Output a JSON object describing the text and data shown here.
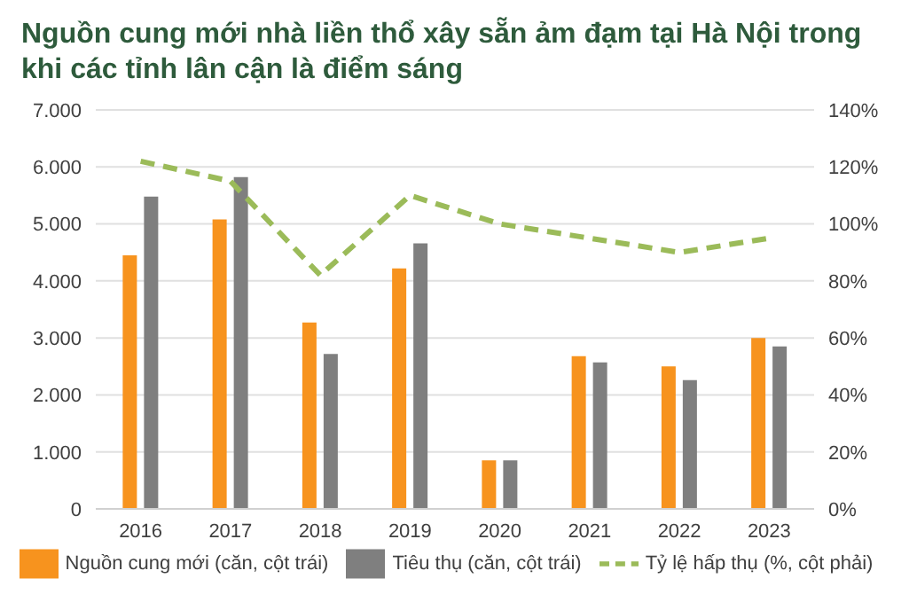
{
  "chart_data": {
    "type": "bar",
    "title": "Nguồn cung mới nhà liền thổ xây sẵn ảm đạm tại Hà Nội trong khi các tỉnh lân cận là điểm sáng",
    "categories": [
      "2016",
      "2017",
      "2018",
      "2019",
      "2020",
      "2021",
      "2022",
      "2023"
    ],
    "series": [
      {
        "name": "Nguồn cung mới (căn, cột trái)",
        "color": "#f7931e",
        "values": [
          4450,
          5080,
          3270,
          4220,
          850,
          2680,
          2500,
          3000
        ]
      },
      {
        "name": "Tiêu thụ (căn, cột trái)",
        "color": "#7f7f7f",
        "values": [
          5480,
          5820,
          2720,
          4660,
          850,
          2570,
          2260,
          2850
        ]
      },
      {
        "name": "Tỷ lệ hấp thụ (%, cột phải)",
        "type": "line",
        "axis": "y2",
        "color": "#9bbb59",
        "line_style": "dashed",
        "marker": "none",
        "values": [
          122,
          115,
          82,
          110,
          100,
          95,
          90,
          95
        ]
      }
    ],
    "ylim": [
      0,
      7000
    ],
    "yticks": [
      {
        "value": 0,
        "label": "0"
      },
      {
        "value": 1000,
        "label": "1.000"
      },
      {
        "value": 2000,
        "label": "2.000"
      },
      {
        "value": 3000,
        "label": "3.000"
      },
      {
        "value": 4000,
        "label": "4.000"
      },
      {
        "value": 5000,
        "label": "5.000"
      },
      {
        "value": 6000,
        "label": "6.000"
      },
      {
        "value": 7000,
        "label": "7.000"
      }
    ],
    "y2lim": [
      0,
      140
    ],
    "y2ticks": [
      {
        "value": 0,
        "label": "0%"
      },
      {
        "value": 20,
        "label": "20%"
      },
      {
        "value": 40,
        "label": "40%"
      },
      {
        "value": 60,
        "label": "60%"
      },
      {
        "value": 80,
        "label": "80%"
      },
      {
        "value": 100,
        "label": "100%"
      },
      {
        "value": 120,
        "label": "120%"
      },
      {
        "value": 140,
        "label": "140%"
      }
    ],
    "grid": "y",
    "legend": "bottom"
  }
}
